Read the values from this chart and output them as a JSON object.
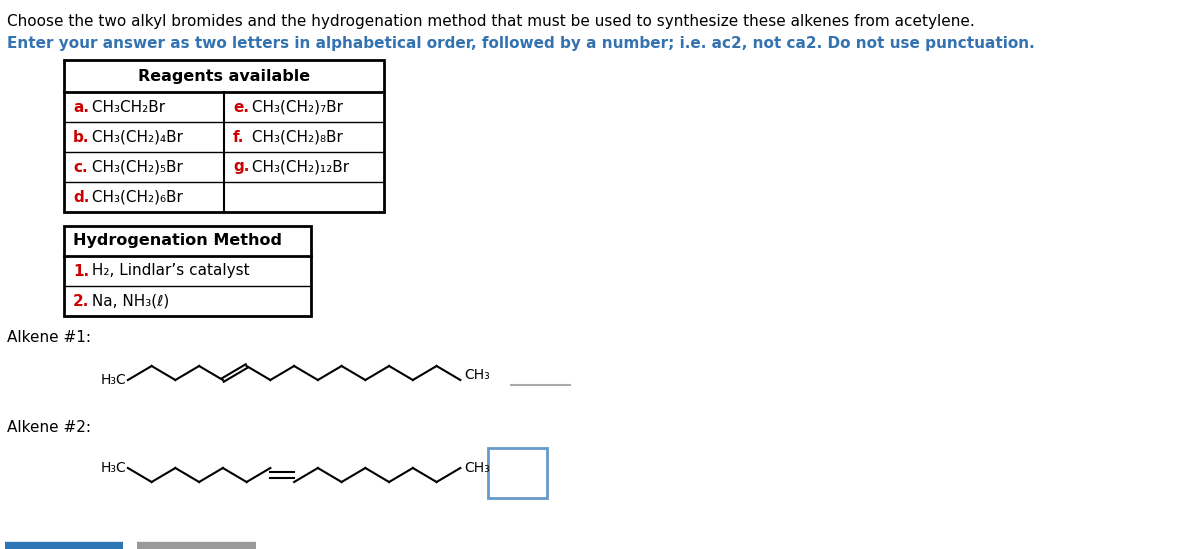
{
  "title1": "Choose the two alkyl bromides and the hydrogenation method that must be used to synthesize these alkenes from acetylene.",
  "title2": "Enter your answer as two letters in alphabetical order, followed by a number; i.e. ac2, not ca2. Do not use punctuation.",
  "reagents_header": "Reagents available",
  "reagents_left": [
    "a.",
    "b.",
    "c.",
    "d."
  ],
  "reagents_left_text": [
    " CH₃CH₂Br",
    " CH₃(CH₂)₄Br",
    " CH₃(CH₂)₅Br",
    " CH₃(CH₂)₆Br"
  ],
  "reagents_right": [
    "e.",
    "f.",
    "g.",
    ""
  ],
  "reagents_right_text": [
    " CH₃(CH₂)₇Br",
    " CH₃(CH₂)₈Br",
    " CH₃(CH₂)₁₂Br",
    ""
  ],
  "hydro_header": "Hydrogenation Method",
  "hydro_numbers": [
    "1.",
    "2."
  ],
  "hydro_texts": [
    " H₂, Lindlar’s catalyst",
    " Na, NH₃(ℓ)"
  ],
  "alkene1_label": "Alkene #1:",
  "alkene2_label": "Alkene #2:",
  "left_label": "H₃C",
  "right_label": "CH₃",
  "bg_color": "#ffffff",
  "title1_color": "#000000",
  "title2_color": "#3472b0",
  "red_color": "#cc0000",
  "answer_box2_color": "#6699cc",
  "bar1_color": "#2e75b6",
  "bar2_color": "#999999"
}
